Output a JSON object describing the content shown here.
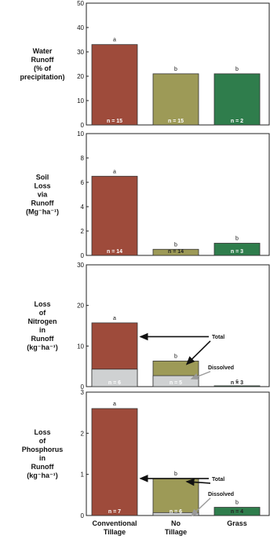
{
  "colors": {
    "conventional": "#9e4b3b",
    "no_tillage": "#9d9a57",
    "grass": "#2f7d4c",
    "dissolved": "#cfd1d2",
    "axis": "#222222"
  },
  "categories": [
    "Conventional Tillage",
    "No Tillage",
    "Grass"
  ],
  "category_label_lines": [
    [
      "Conventional",
      "Tillage"
    ],
    [
      "No",
      "Tillage"
    ],
    [
      "Grass"
    ]
  ],
  "chart_data": [
    {
      "type": "bar",
      "ylabel_lines": [
        "Water",
        "Runoff",
        "(% of",
        "precipitation)"
      ],
      "ylim": [
        0,
        50
      ],
      "yticks": [
        0,
        10,
        20,
        30,
        40,
        50
      ],
      "categories": [
        "Conventional Tillage",
        "No Tillage",
        "Grass"
      ],
      "values": [
        33,
        21,
        21
      ],
      "letters": [
        "a",
        "b",
        "b"
      ],
      "n_labels": [
        "n = 15",
        "n = 15",
        "n = 2"
      ]
    },
    {
      "type": "bar",
      "ylabel_lines": [
        "Soil",
        "Loss",
        "via",
        "Runoff",
        "(Mg⁻ha⁻¹)"
      ],
      "ylim": [
        0,
        10
      ],
      "yticks": [
        0,
        2,
        4,
        6,
        8,
        10
      ],
      "categories": [
        "Conventional Tillage",
        "No Tillage",
        "Grass"
      ],
      "values": [
        6.5,
        0.5,
        1.0
      ],
      "letters": [
        "a",
        "b",
        "b"
      ],
      "n_labels": [
        "n = 14",
        "n = 14",
        "n = 3"
      ]
    },
    {
      "type": "bar",
      "stacked": true,
      "ylabel_lines": [
        "Loss",
        "of",
        "Nitrogen",
        "in",
        "Runoff",
        "(kg⁻ha⁻¹)"
      ],
      "ylim": [
        0,
        30
      ],
      "yticks": [
        0,
        10,
        20,
        30
      ],
      "categories": [
        "Conventional Tillage",
        "No Tillage",
        "Grass"
      ],
      "values": [
        15.7,
        6.3,
        0.2
      ],
      "dissolved": [
        4.3,
        2.7,
        null
      ],
      "letters": [
        "a",
        "b",
        "c"
      ],
      "n_labels": [
        "n = 6",
        "n = 5",
        "n = 3"
      ],
      "annotations": [
        "Total",
        "Dissolved"
      ]
    },
    {
      "type": "bar",
      "stacked": true,
      "ylabel_lines": [
        "Loss",
        "of",
        "Phosphorus",
        "in",
        "Runoff",
        "(kg⁻ha⁻¹)"
      ],
      "ylim": [
        0,
        3
      ],
      "yticks": [
        0,
        1,
        2,
        3
      ],
      "categories": [
        "Conventional Tillage",
        "No Tillage",
        "Grass"
      ],
      "values": [
        2.6,
        0.9,
        0.2
      ],
      "dissolved": [
        null,
        0.07,
        null
      ],
      "letters": [
        "a",
        "b",
        "b"
      ],
      "n_labels": [
        "n = 7",
        "n = 6",
        "n = 4"
      ],
      "annotations": [
        "Total",
        "Dissolved"
      ]
    }
  ]
}
